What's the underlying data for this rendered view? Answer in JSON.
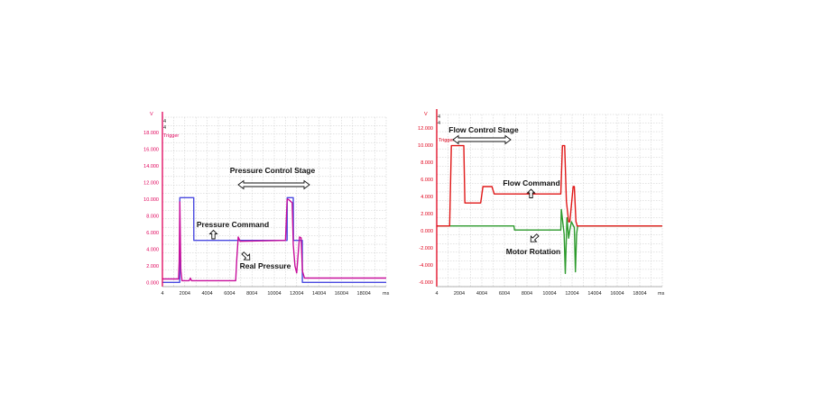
{
  "chart_data": [
    {
      "type": "line",
      "y_unit_label": "V",
      "x_unit_label": "ms",
      "channel_labels": [
        "4",
        "4"
      ],
      "trigger_label": "Trigger",
      "x_ticks": [
        "4",
        "2004",
        "4004",
        "6004",
        "8004",
        "10004",
        "12004",
        "14004",
        "16004",
        "18004"
      ],
      "y_ticks": [
        "0.000",
        "2.000",
        "4.000",
        "6.000",
        "8.000",
        "10.000",
        "12.000",
        "14.000",
        "16.000",
        "18.000"
      ],
      "xlim": [
        4,
        20004
      ],
      "ylim": [
        -0.4,
        19.4
      ],
      "grid": true,
      "colors": {
        "axis": "#e0005a",
        "grid": "#c8c8c8"
      },
      "annotations": [
        {
          "id": "stage",
          "text": "Pressure Control Stage"
        },
        {
          "id": "command",
          "text": "Pressure Command"
        },
        {
          "id": "real",
          "text": "Real Pressure"
        }
      ],
      "series": [
        {
          "color": "#4a4ae0",
          "x": [
            4,
            1550,
            1560,
            2800,
            2810,
            11150,
            11160,
            11700,
            11710,
            12500,
            12510,
            20004
          ],
          "y": [
            0.1,
            0.1,
            10.0,
            10.0,
            5.0,
            5.0,
            10.0,
            10.0,
            5.0,
            5.0,
            0.1,
            0.1
          ]
        },
        {
          "color": "#c8109c",
          "x": [
            4,
            1450,
            1500,
            1560,
            1650,
            1750,
            2400,
            2500,
            2600,
            6550,
            6650,
            6780,
            6950,
            11000,
            11150,
            11260,
            11600,
            11700,
            11850,
            12000,
            12250,
            12400,
            12520,
            12700,
            20004
          ],
          "y": [
            0.5,
            0.5,
            2.5,
            9.5,
            1.5,
            0.3,
            0.3,
            0.6,
            0.3,
            0.3,
            2.8,
            5.4,
            4.9,
            5.0,
            9.8,
            9.8,
            9.4,
            4.5,
            2.0,
            1.2,
            5.4,
            5.3,
            1.4,
            0.6,
            0.6
          ]
        }
      ]
    },
    {
      "type": "line",
      "y_unit_label": "V",
      "x_unit_label": "ms",
      "channel_labels": [
        "4",
        "4"
      ],
      "trigger_label": "Trigger",
      "x_ticks": [
        "4",
        "2004",
        "4004",
        "6004",
        "8004",
        "10004",
        "12004",
        "14004",
        "16004",
        "18004"
      ],
      "y_ticks": [
        "-6.000",
        "-4.000",
        "-2.000",
        "0.000",
        "2.000",
        "4.000",
        "6.000",
        "8.000",
        "10.000",
        "12.000"
      ],
      "xlim": [
        4,
        20004
      ],
      "ylim": [
        -7.4,
        13.6
      ],
      "grid": true,
      "colors": {
        "axis": "#e0001a",
        "grid": "#c8c8c8"
      },
      "annotations": [
        {
          "id": "stage",
          "text": "Flow Control Stage"
        },
        {
          "id": "command",
          "text": "Flow Command"
        },
        {
          "id": "motor",
          "text": "Motor Rotation"
        }
      ],
      "series": [
        {
          "color": "#2c9a2c",
          "x": [
            4,
            1200,
            6850,
            6900,
            11000,
            11050,
            11300,
            11400,
            11550,
            11700,
            11800,
            11950,
            12200,
            12300,
            12400,
            12500,
            20004
          ],
          "y": [
            0.0,
            0.0,
            0.0,
            -0.5,
            -0.5,
            2.0,
            -1.0,
            -5.8,
            1.0,
            -1.5,
            -0.5,
            0.5,
            -0.2,
            -5.6,
            -1.0,
            0.0,
            0.0
          ]
        },
        {
          "color": "#e01818",
          "x": [
            4,
            1150,
            1300,
            1400,
            2400,
            2500,
            2850,
            3900,
            4100,
            4900,
            5100,
            11000,
            11150,
            11350,
            11500,
            11700,
            11800,
            12100,
            12200,
            12350,
            12400,
            12450,
            12500,
            12600,
            20004
          ],
          "y": [
            0.0,
            0.0,
            9.8,
            9.8,
            9.8,
            2.8,
            2.8,
            2.8,
            4.8,
            4.8,
            3.9,
            3.9,
            9.8,
            9.8,
            3.0,
            0.5,
            0.5,
            4.8,
            4.8,
            0.5,
            0.3,
            0.0,
            0.0,
            0.0,
            0.0
          ]
        }
      ]
    }
  ]
}
